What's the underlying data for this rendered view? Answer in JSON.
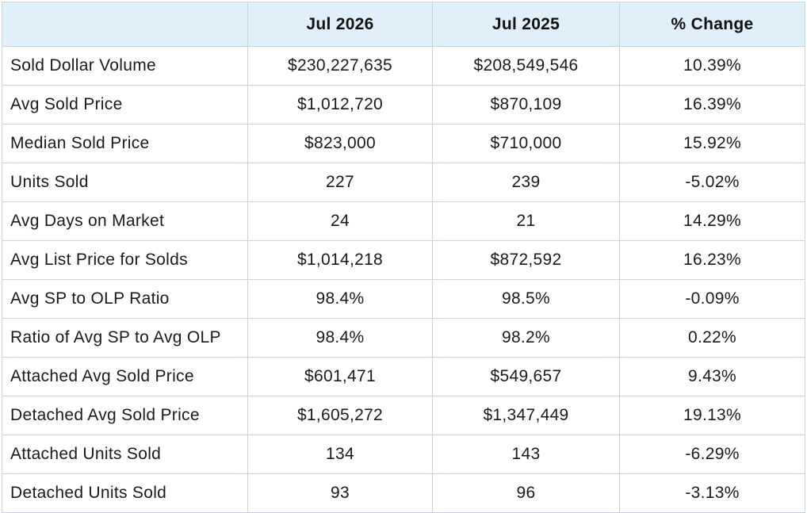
{
  "chart_data": {
    "type": "table",
    "columns": [
      "",
      "Jul 2026",
      "Jul 2025",
      "% Change"
    ],
    "rows": [
      [
        "Sold Dollar Volume",
        "$230,227,635",
        "$208,549,546",
        "10.39%"
      ],
      [
        "Avg Sold Price",
        "$1,012,720",
        "$870,109",
        "16.39%"
      ],
      [
        "Median Sold Price",
        "$823,000",
        "$710,000",
        "15.92%"
      ],
      [
        "Units Sold",
        "227",
        "239",
        "-5.02%"
      ],
      [
        "Avg Days on Market",
        "24",
        "21",
        "14.29%"
      ],
      [
        "Avg List Price for Solds",
        "$1,014,218",
        "$872,592",
        "16.23%"
      ],
      [
        "Avg SP to OLP Ratio",
        "98.4%",
        "98.5%",
        "-0.09%"
      ],
      [
        "Ratio of Avg SP to Avg OLP",
        "98.4%",
        "98.2%",
        "0.22%"
      ],
      [
        "Attached Avg Sold Price",
        "$601,471",
        "$549,657",
        "9.43%"
      ],
      [
        "Detached Avg Sold Price",
        "$1,605,272",
        "$1,347,449",
        "19.13%"
      ],
      [
        "Attached Units Sold",
        "134",
        "143",
        "-6.29%"
      ],
      [
        "Detached Units Sold",
        "93",
        "96",
        "-3.13%"
      ]
    ],
    "colors": {
      "header_background": "#dff0fb",
      "border": "#c9d2dc"
    }
  }
}
